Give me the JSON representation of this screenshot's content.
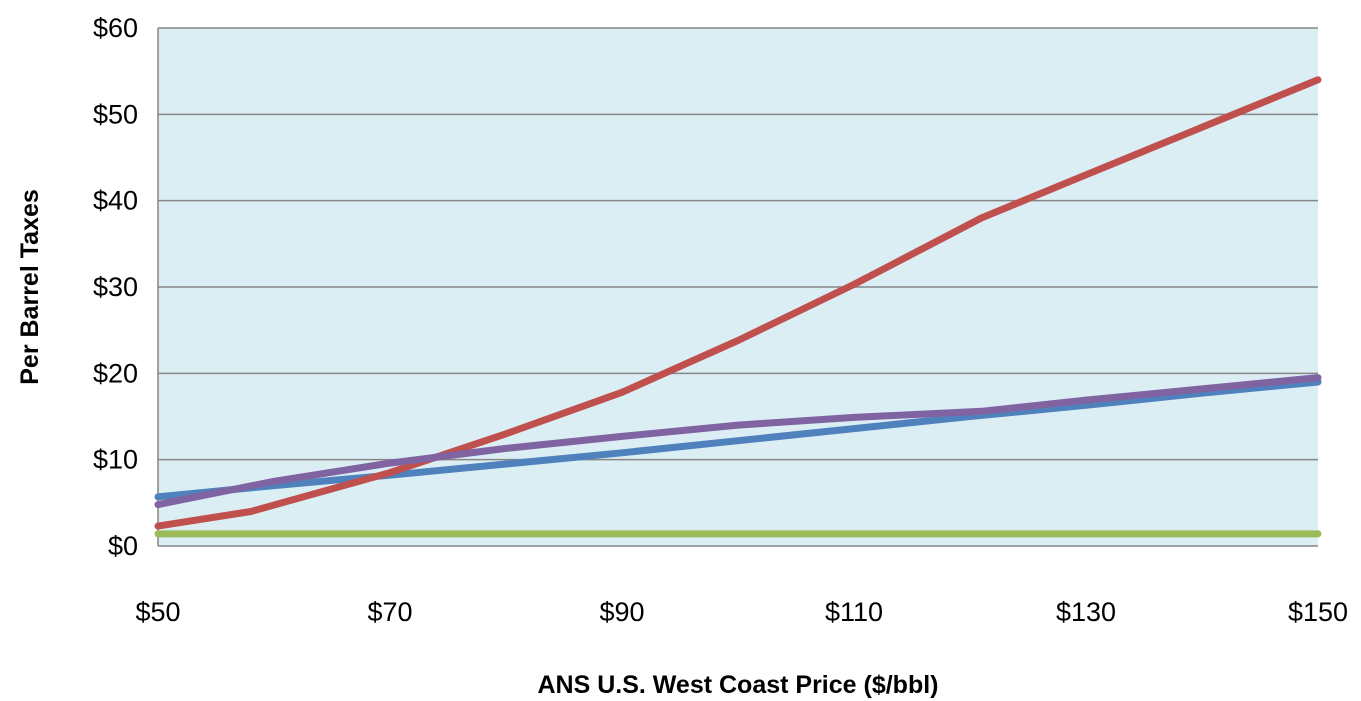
{
  "chart_data": {
    "type": "line",
    "title": "",
    "xlabel": "ANS U.S. West Coast Price ($/bbl)",
    "ylabel": "Per Barrel Taxes",
    "xlim": [
      50,
      150
    ],
    "ylim": [
      0,
      60
    ],
    "x_ticks": [
      50,
      70,
      90,
      110,
      130,
      150
    ],
    "x_tick_labels": [
      "$50",
      "$70",
      "$90",
      "$110",
      "$130",
      "$150"
    ],
    "y_ticks": [
      0,
      10,
      20,
      30,
      40,
      50,
      60
    ],
    "y_tick_labels": [
      "$0",
      "$10",
      "$20",
      "$30",
      "$40",
      "$50",
      "$60"
    ],
    "grid": "horizontal",
    "plot_background": "#DBEEF4",
    "series": [
      {
        "color": "#4F81BD",
        "x": [
          50,
          60,
          70,
          80,
          90,
          100,
          110,
          120,
          130,
          140,
          150
        ],
        "y": [
          5.7,
          7.0,
          8.2,
          9.5,
          10.8,
          12.2,
          13.6,
          15.0,
          16.3,
          17.7,
          19.0
        ]
      },
      {
        "color": "#C0504D",
        "x": [
          50,
          58,
          70,
          80,
          90,
          100,
          110,
          121,
          130,
          140,
          150
        ],
        "y": [
          2.3,
          4.0,
          8.5,
          13.0,
          17.8,
          23.8,
          30.3,
          38.0,
          43.0,
          48.5,
          54.0
        ]
      },
      {
        "color": "#9BBB59",
        "x": [
          50,
          150
        ],
        "y": [
          1.4,
          1.4
        ]
      },
      {
        "color": "#8064A2",
        "x": [
          50,
          60,
          70,
          80,
          90,
          100,
          110,
          121,
          130,
          140,
          150
        ],
        "y": [
          4.8,
          7.5,
          9.6,
          11.3,
          12.7,
          14.0,
          14.9,
          15.6,
          16.9,
          18.2,
          19.5
        ]
      }
    ]
  }
}
